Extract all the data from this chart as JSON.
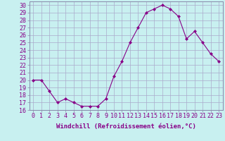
{
  "x": [
    0,
    1,
    2,
    3,
    4,
    5,
    6,
    7,
    8,
    9,
    10,
    11,
    12,
    13,
    14,
    15,
    16,
    17,
    18,
    19,
    20,
    21,
    22,
    23
  ],
  "y": [
    20,
    20,
    18.5,
    17,
    17.5,
    17,
    16.5,
    16.5,
    16.5,
    17.5,
    20.5,
    22.5,
    25,
    27,
    29,
    29.5,
    30,
    29.5,
    28.5,
    25.5,
    26.5,
    25,
    23.5,
    22.5
  ],
  "line_color": "#880088",
  "marker": "D",
  "marker_size": 2.0,
  "bg_color": "#c8f0f0",
  "grid_color": "#aaaacc",
  "xlabel": "Windchill (Refroidissement éolien,°C)",
  "ylim": [
    16,
    30.5
  ],
  "xlim": [
    -0.5,
    23.5
  ],
  "yticks": [
    16,
    17,
    18,
    19,
    20,
    21,
    22,
    23,
    24,
    25,
    26,
    27,
    28,
    29,
    30
  ],
  "xticks": [
    0,
    1,
    2,
    3,
    4,
    5,
    6,
    7,
    8,
    9,
    10,
    11,
    12,
    13,
    14,
    15,
    16,
    17,
    18,
    19,
    20,
    21,
    22,
    23
  ],
  "tick_fontsize": 6,
  "xlabel_fontsize": 6.5
}
